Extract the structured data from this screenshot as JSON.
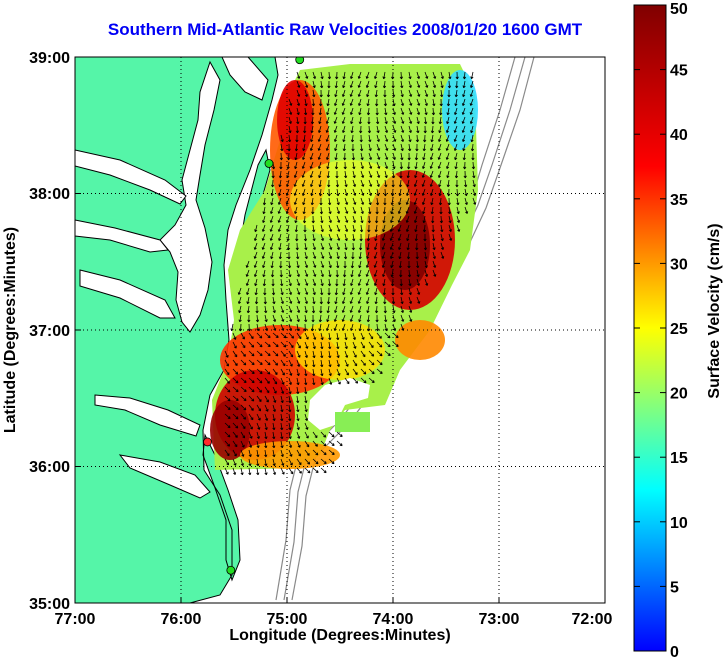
{
  "title": "Southern Mid-Atlantic Raw Velocities 2008/01/20 1600 GMT",
  "x_axis": {
    "label": "Longitude (Degrees:Minutes)",
    "ticks": [
      "77:00",
      "76:00",
      "75:00",
      "74:00",
      "73:00",
      "72:00"
    ]
  },
  "y_axis": {
    "label": "Latitude (Degrees:Minutes)",
    "ticks": [
      "35:00",
      "36:00",
      "37:00",
      "38:00",
      "39:00"
    ]
  },
  "colorbar": {
    "label": "Surface Velocity (cm/s)",
    "ticks": [
      "0",
      "5",
      "10",
      "15",
      "20",
      "25",
      "30",
      "35",
      "40",
      "45",
      "50"
    ],
    "min": 0,
    "max": 50
  },
  "extent": {
    "lon_min": -77,
    "lon_max": -72,
    "lat_min": 35,
    "lat_max": 39
  },
  "colors": {
    "land": "#55f5a8",
    "title": "#0000f5",
    "station": "#22dd22",
    "station_alert": "#ff2a2a"
  },
  "stations": [
    {
      "lon": -74.88,
      "lat": 38.98,
      "status": "ok"
    },
    {
      "lon": -75.17,
      "lat": 38.22,
      "status": "ok"
    },
    {
      "lon": -75.75,
      "lat": 36.18,
      "status": "alert"
    },
    {
      "lon": -75.53,
      "lat": 35.24,
      "status": "ok"
    }
  ]
}
